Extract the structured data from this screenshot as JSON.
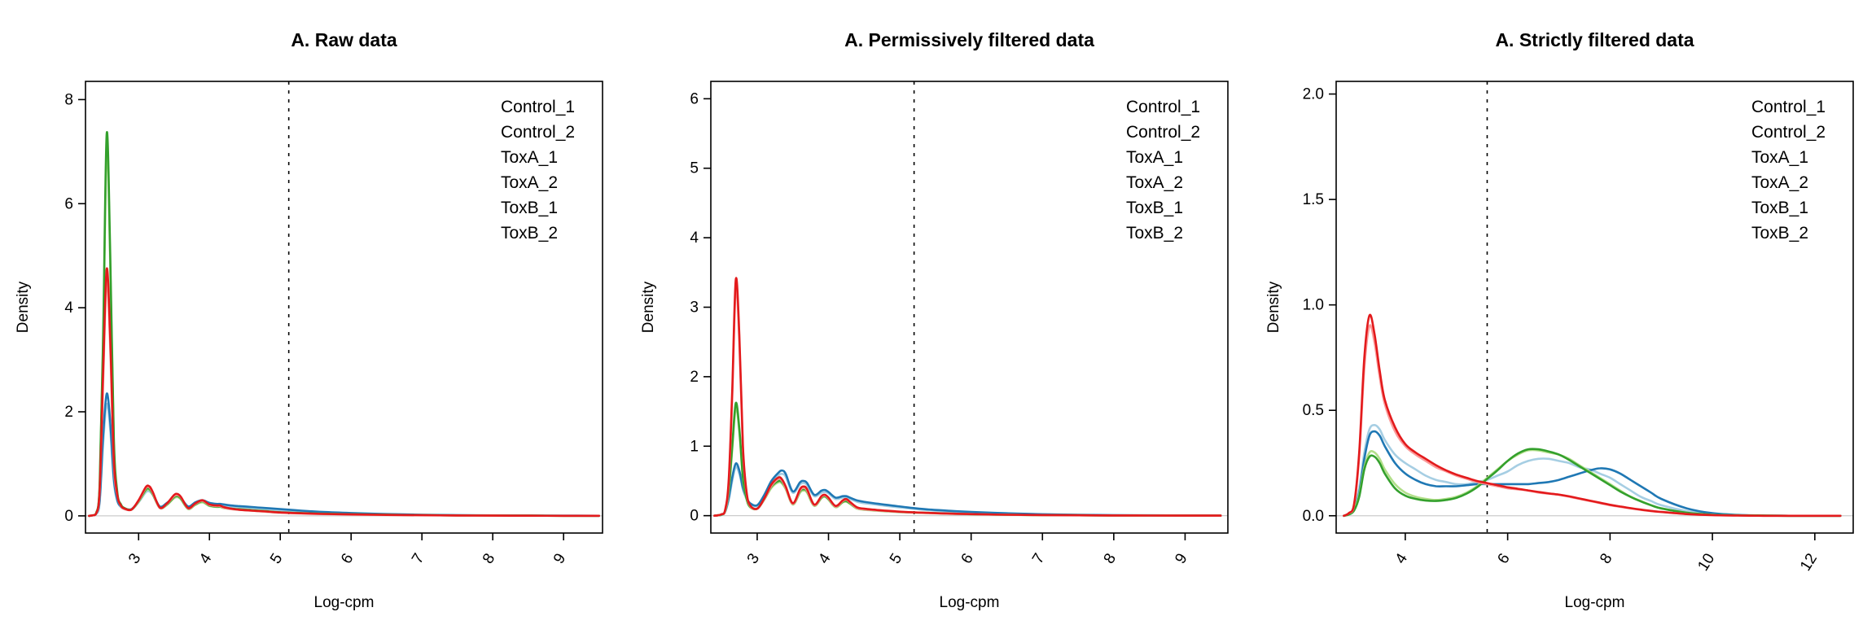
{
  "page": {
    "background": "#ffffff"
  },
  "chart_data": [
    {
      "type": "line",
      "title": "A. Raw data",
      "xlabel": "Log-cpm",
      "ylabel": "Density",
      "xlim": [
        2.25,
        9.55
      ],
      "ylim": [
        -0.33,
        8.35
      ],
      "xticks": [
        3,
        4,
        5,
        6,
        7,
        8,
        9
      ],
      "yticks": [
        0,
        2,
        4,
        6,
        8
      ],
      "ytick_labels": [
        "0",
        "2",
        "4",
        "6",
        "8"
      ],
      "cutoff_line_x": 5.12,
      "grid": false,
      "legend_position": "top-right",
      "x": [
        2.3,
        2.35,
        2.4,
        2.45,
        2.5,
        2.55,
        2.6,
        2.65,
        2.7,
        2.75,
        2.8,
        2.9,
        3.0,
        3.1,
        3.15,
        3.2,
        3.3,
        3.4,
        3.5,
        3.55,
        3.6,
        3.7,
        3.8,
        3.9,
        4.0,
        4.1,
        4.15,
        4.2,
        4.3,
        4.4,
        4.6,
        4.8,
        5.0,
        5.3,
        5.6,
        6.0,
        6.5,
        7.0,
        7.5,
        8.0,
        8.5,
        9.0,
        9.5
      ],
      "series": [
        {
          "name": "Control_1",
          "color": "#a6cee3",
          "y": [
            0,
            0.01,
            0.03,
            0.25,
            1.4,
            2.15,
            1.65,
            0.65,
            0.28,
            0.17,
            0.13,
            0.12,
            0.26,
            0.45,
            0.47,
            0.4,
            0.17,
            0.23,
            0.34,
            0.36,
            0.32,
            0.17,
            0.24,
            0.28,
            0.23,
            0.21,
            0.21,
            0.2,
            0.18,
            0.17,
            0.15,
            0.13,
            0.11,
            0.08,
            0.06,
            0.045,
            0.03,
            0.02,
            0.012,
            0.008,
            0.005,
            0.003,
            0.002
          ]
        },
        {
          "name": "Control_2",
          "color": "#1f78b4",
          "y": [
            0,
            0.01,
            0.04,
            0.3,
            1.55,
            2.35,
            1.8,
            0.72,
            0.3,
            0.18,
            0.14,
            0.13,
            0.28,
            0.48,
            0.5,
            0.43,
            0.18,
            0.25,
            0.36,
            0.38,
            0.34,
            0.18,
            0.26,
            0.3,
            0.25,
            0.23,
            0.23,
            0.22,
            0.2,
            0.19,
            0.17,
            0.15,
            0.13,
            0.1,
            0.075,
            0.055,
            0.035,
            0.022,
            0.014,
            0.009,
            0.005,
            0.003,
            0.002
          ]
        },
        {
          "name": "ToxA_1",
          "color": "#b2df8a",
          "y": [
            0,
            0.01,
            0.05,
            0.55,
            3.3,
            7.1,
            4.8,
            1.4,
            0.42,
            0.21,
            0.14,
            0.12,
            0.27,
            0.48,
            0.5,
            0.41,
            0.15,
            0.21,
            0.34,
            0.36,
            0.31,
            0.13,
            0.21,
            0.26,
            0.19,
            0.17,
            0.17,
            0.15,
            0.13,
            0.12,
            0.1,
            0.08,
            0.065,
            0.05,
            0.04,
            0.03,
            0.02,
            0.013,
            0.008,
            0.005,
            0.003,
            0.002,
            0.001
          ]
        },
        {
          "name": "ToxA_2",
          "color": "#33a02c",
          "y": [
            0,
            0.01,
            0.05,
            0.6,
            3.5,
            7.35,
            5.0,
            1.5,
            0.45,
            0.22,
            0.15,
            0.12,
            0.28,
            0.5,
            0.52,
            0.42,
            0.16,
            0.22,
            0.36,
            0.38,
            0.33,
            0.14,
            0.22,
            0.28,
            0.2,
            0.18,
            0.18,
            0.16,
            0.14,
            0.13,
            0.11,
            0.09,
            0.07,
            0.055,
            0.042,
            0.032,
            0.022,
            0.014,
            0.009,
            0.006,
            0.004,
            0.002,
            0.001
          ]
        },
        {
          "name": "ToxB_1",
          "color": "#fb9a99",
          "y": [
            0,
            0.01,
            0.04,
            0.45,
            2.6,
            4.55,
            3.2,
            1.0,
            0.38,
            0.19,
            0.13,
            0.12,
            0.29,
            0.53,
            0.55,
            0.44,
            0.15,
            0.23,
            0.38,
            0.4,
            0.35,
            0.14,
            0.23,
            0.29,
            0.21,
            0.19,
            0.19,
            0.16,
            0.13,
            0.12,
            0.1,
            0.08,
            0.06,
            0.045,
            0.034,
            0.025,
            0.017,
            0.011,
            0.007,
            0.004,
            0.003,
            0.002,
            0.001
          ]
        },
        {
          "name": "ToxB_2",
          "color": "#e31a1c",
          "y": [
            0,
            0.01,
            0.04,
            0.5,
            2.8,
            4.75,
            3.4,
            1.1,
            0.4,
            0.2,
            0.14,
            0.12,
            0.3,
            0.55,
            0.57,
            0.46,
            0.16,
            0.24,
            0.4,
            0.42,
            0.36,
            0.15,
            0.24,
            0.3,
            0.22,
            0.2,
            0.2,
            0.17,
            0.14,
            0.12,
            0.1,
            0.085,
            0.065,
            0.05,
            0.038,
            0.028,
            0.019,
            0.012,
            0.008,
            0.005,
            0.003,
            0.002,
            0.001
          ]
        }
      ]
    },
    {
      "type": "line",
      "title": "A. Permissively filtered data",
      "xlabel": "Log-cpm",
      "ylabel": "Density",
      "xlim": [
        2.35,
        9.6
      ],
      "ylim": [
        -0.25,
        6.25
      ],
      "xticks": [
        3,
        4,
        5,
        6,
        7,
        8,
        9
      ],
      "yticks": [
        0,
        1,
        2,
        3,
        4,
        5,
        6
      ],
      "ytick_labels": [
        "0",
        "1",
        "2",
        "3",
        "4",
        "5",
        "6"
      ],
      "cutoff_line_x": 5.2,
      "grid": false,
      "legend_position": "top-right",
      "x": [
        2.4,
        2.45,
        2.5,
        2.55,
        2.6,
        2.65,
        2.7,
        2.75,
        2.8,
        2.85,
        2.9,
        3.0,
        3.1,
        3.2,
        3.3,
        3.35,
        3.4,
        3.5,
        3.6,
        3.65,
        3.7,
        3.8,
        3.9,
        3.95,
        4.0,
        4.1,
        4.2,
        4.25,
        4.3,
        4.4,
        4.5,
        4.7,
        4.9,
        5.1,
        5.4,
        5.7,
        6.0,
        6.5,
        7.0,
        7.5,
        8.0,
        8.5,
        9.0,
        9.5
      ],
      "series": [
        {
          "name": "Control_1",
          "color": "#a6cee3",
          "y": [
            0,
            0.005,
            0.01,
            0.05,
            0.22,
            0.5,
            0.7,
            0.6,
            0.38,
            0.24,
            0.17,
            0.14,
            0.28,
            0.47,
            0.58,
            0.6,
            0.56,
            0.33,
            0.45,
            0.47,
            0.44,
            0.28,
            0.33,
            0.34,
            0.32,
            0.24,
            0.26,
            0.26,
            0.24,
            0.2,
            0.18,
            0.155,
            0.13,
            0.11,
            0.08,
            0.06,
            0.048,
            0.03,
            0.018,
            0.011,
            0.007,
            0.004,
            0.003,
            0.002
          ]
        },
        {
          "name": "Control_2",
          "color": "#1f78b4",
          "y": [
            0,
            0.005,
            0.012,
            0.06,
            0.25,
            0.55,
            0.75,
            0.65,
            0.4,
            0.26,
            0.18,
            0.15,
            0.3,
            0.5,
            0.62,
            0.65,
            0.6,
            0.35,
            0.48,
            0.5,
            0.47,
            0.3,
            0.36,
            0.37,
            0.34,
            0.26,
            0.28,
            0.28,
            0.26,
            0.22,
            0.2,
            0.17,
            0.145,
            0.12,
            0.09,
            0.07,
            0.055,
            0.035,
            0.021,
            0.013,
            0.008,
            0.005,
            0.003,
            0.002
          ]
        },
        {
          "name": "ToxA_1",
          "color": "#b2df8a",
          "y": [
            0,
            0.005,
            0.015,
            0.06,
            0.33,
            0.95,
            1.55,
            1.2,
            0.52,
            0.24,
            0.12,
            0.1,
            0.23,
            0.4,
            0.48,
            0.46,
            0.38,
            0.16,
            0.33,
            0.36,
            0.33,
            0.14,
            0.25,
            0.27,
            0.23,
            0.12,
            0.19,
            0.2,
            0.17,
            0.1,
            0.085,
            0.07,
            0.057,
            0.047,
            0.037,
            0.028,
            0.021,
            0.012,
            0.007,
            0.005,
            0.003,
            0.002,
            0.001,
            0.001
          ]
        },
        {
          "name": "ToxA_2",
          "color": "#33a02c",
          "y": [
            0,
            0.005,
            0.015,
            0.065,
            0.35,
            1.0,
            1.62,
            1.25,
            0.55,
            0.25,
            0.13,
            0.1,
            0.24,
            0.42,
            0.5,
            0.48,
            0.4,
            0.17,
            0.35,
            0.38,
            0.35,
            0.15,
            0.26,
            0.28,
            0.24,
            0.13,
            0.2,
            0.21,
            0.18,
            0.11,
            0.09,
            0.075,
            0.06,
            0.05,
            0.04,
            0.03,
            0.022,
            0.013,
            0.008,
            0.005,
            0.003,
            0.002,
            0.001,
            0.001
          ]
        },
        {
          "name": "ToxB_1",
          "color": "#fb9a99",
          "y": [
            0,
            0.005,
            0.02,
            0.07,
            0.45,
            1.7,
            3.28,
            2.5,
            0.95,
            0.33,
            0.14,
            0.1,
            0.24,
            0.43,
            0.53,
            0.5,
            0.4,
            0.17,
            0.36,
            0.4,
            0.36,
            0.15,
            0.27,
            0.29,
            0.25,
            0.13,
            0.21,
            0.23,
            0.19,
            0.11,
            0.09,
            0.075,
            0.06,
            0.05,
            0.038,
            0.028,
            0.022,
            0.013,
            0.008,
            0.005,
            0.003,
            0.002,
            0.001,
            0.001
          ]
        },
        {
          "name": "ToxB_2",
          "color": "#e31a1c",
          "y": [
            0,
            0.005,
            0.02,
            0.08,
            0.5,
            1.8,
            3.4,
            2.6,
            1.0,
            0.35,
            0.15,
            0.1,
            0.25,
            0.45,
            0.55,
            0.52,
            0.42,
            0.18,
            0.38,
            0.42,
            0.38,
            0.16,
            0.28,
            0.3,
            0.26,
            0.14,
            0.22,
            0.24,
            0.2,
            0.12,
            0.1,
            0.08,
            0.065,
            0.052,
            0.04,
            0.03,
            0.023,
            0.014,
            0.009,
            0.005,
            0.003,
            0.002,
            0.001,
            0.001
          ]
        }
      ]
    },
    {
      "type": "line",
      "title": "A. Strictly filtered data",
      "xlabel": "Log-cpm",
      "ylabel": "Density",
      "xlim": [
        2.65,
        12.75
      ],
      "ylim": [
        -0.082,
        2.06
      ],
      "xticks": [
        4,
        6,
        8,
        10,
        12
      ],
      "yticks": [
        0,
        0.5,
        1.0,
        1.5,
        2.0
      ],
      "ytick_labels": [
        "0.0",
        "0.5",
        "1.0",
        "1.5",
        "2.0"
      ],
      "cutoff_line_x": 5.6,
      "grid": false,
      "legend_position": "top-right",
      "x": [
        2.8,
        2.9,
        3.0,
        3.1,
        3.2,
        3.3,
        3.4,
        3.5,
        3.6,
        3.8,
        4.0,
        4.2,
        4.4,
        4.6,
        4.8,
        5.0,
        5.2,
        5.4,
        5.6,
        5.8,
        6.0,
        6.2,
        6.4,
        6.6,
        6.8,
        7.0,
        7.2,
        7.4,
        7.6,
        7.8,
        8.0,
        8.2,
        8.4,
        8.6,
        8.8,
        9.0,
        9.5,
        10.0,
        10.5,
        11.0,
        11.5,
        12.0,
        12.5
      ],
      "series": [
        {
          "name": "Control_1",
          "color": "#a6cee3",
          "y": [
            0,
            0.01,
            0.04,
            0.13,
            0.3,
            0.41,
            0.43,
            0.41,
            0.36,
            0.29,
            0.25,
            0.22,
            0.19,
            0.17,
            0.16,
            0.15,
            0.15,
            0.16,
            0.17,
            0.19,
            0.21,
            0.24,
            0.26,
            0.27,
            0.27,
            0.26,
            0.25,
            0.23,
            0.22,
            0.2,
            0.18,
            0.15,
            0.12,
            0.09,
            0.07,
            0.05,
            0.022,
            0.008,
            0.003,
            0.001,
            0,
            0,
            0
          ]
        },
        {
          "name": "Control_2",
          "color": "#1f78b4",
          "y": [
            0,
            0.008,
            0.035,
            0.11,
            0.27,
            0.38,
            0.4,
            0.38,
            0.33,
            0.25,
            0.2,
            0.17,
            0.15,
            0.14,
            0.14,
            0.14,
            0.145,
            0.15,
            0.15,
            0.15,
            0.15,
            0.15,
            0.15,
            0.155,
            0.16,
            0.17,
            0.185,
            0.2,
            0.215,
            0.225,
            0.22,
            0.2,
            0.17,
            0.14,
            0.11,
            0.08,
            0.035,
            0.012,
            0.004,
            0.001,
            0,
            0,
            0
          ]
        },
        {
          "name": "ToxA_1",
          "color": "#b2df8a",
          "y": [
            0,
            0.007,
            0.03,
            0.1,
            0.23,
            0.3,
            0.3,
            0.27,
            0.22,
            0.15,
            0.11,
            0.09,
            0.08,
            0.075,
            0.08,
            0.09,
            0.11,
            0.14,
            0.18,
            0.22,
            0.26,
            0.29,
            0.31,
            0.31,
            0.3,
            0.29,
            0.27,
            0.24,
            0.21,
            0.18,
            0.15,
            0.12,
            0.09,
            0.07,
            0.05,
            0.035,
            0.015,
            0.005,
            0.002,
            0.001,
            0,
            0,
            0
          ]
        },
        {
          "name": "ToxA_2",
          "color": "#33a02c",
          "y": [
            0,
            0.006,
            0.025,
            0.09,
            0.22,
            0.28,
            0.28,
            0.25,
            0.2,
            0.13,
            0.095,
            0.08,
            0.072,
            0.07,
            0.075,
            0.085,
            0.105,
            0.135,
            0.175,
            0.215,
            0.26,
            0.295,
            0.315,
            0.315,
            0.305,
            0.29,
            0.265,
            0.235,
            0.205,
            0.175,
            0.145,
            0.115,
            0.09,
            0.068,
            0.05,
            0.035,
            0.014,
            0.005,
            0.002,
            0.001,
            0,
            0,
            0
          ]
        },
        {
          "name": "ToxB_1",
          "color": "#fb9a99",
          "y": [
            0,
            0.012,
            0.05,
            0.28,
            0.7,
            0.9,
            0.82,
            0.66,
            0.53,
            0.4,
            0.33,
            0.29,
            0.26,
            0.23,
            0.21,
            0.19,
            0.175,
            0.16,
            0.15,
            0.14,
            0.13,
            0.125,
            0.12,
            0.11,
            0.105,
            0.1,
            0.09,
            0.08,
            0.07,
            0.06,
            0.05,
            0.042,
            0.035,
            0.028,
            0.022,
            0.018,
            0.008,
            0.003,
            0.001,
            0,
            0,
            0,
            0
          ]
        },
        {
          "name": "ToxB_2",
          "color": "#e31a1c",
          "y": [
            0,
            0.013,
            0.055,
            0.3,
            0.75,
            0.95,
            0.86,
            0.69,
            0.55,
            0.42,
            0.34,
            0.3,
            0.27,
            0.24,
            0.215,
            0.195,
            0.18,
            0.165,
            0.155,
            0.145,
            0.135,
            0.128,
            0.12,
            0.113,
            0.106,
            0.1,
            0.092,
            0.082,
            0.072,
            0.062,
            0.052,
            0.044,
            0.036,
            0.029,
            0.023,
            0.018,
            0.008,
            0.003,
            0.001,
            0,
            0,
            0,
            0
          ]
        }
      ]
    }
  ],
  "legend_labels": [
    "Control_1",
    "Control_2",
    "ToxA_1",
    "ToxA_2",
    "ToxB_1",
    "ToxB_2"
  ],
  "style_colors": {
    "axis": "#000000",
    "cutoff_line": "#000000",
    "zero_line": "#cccccc"
  }
}
